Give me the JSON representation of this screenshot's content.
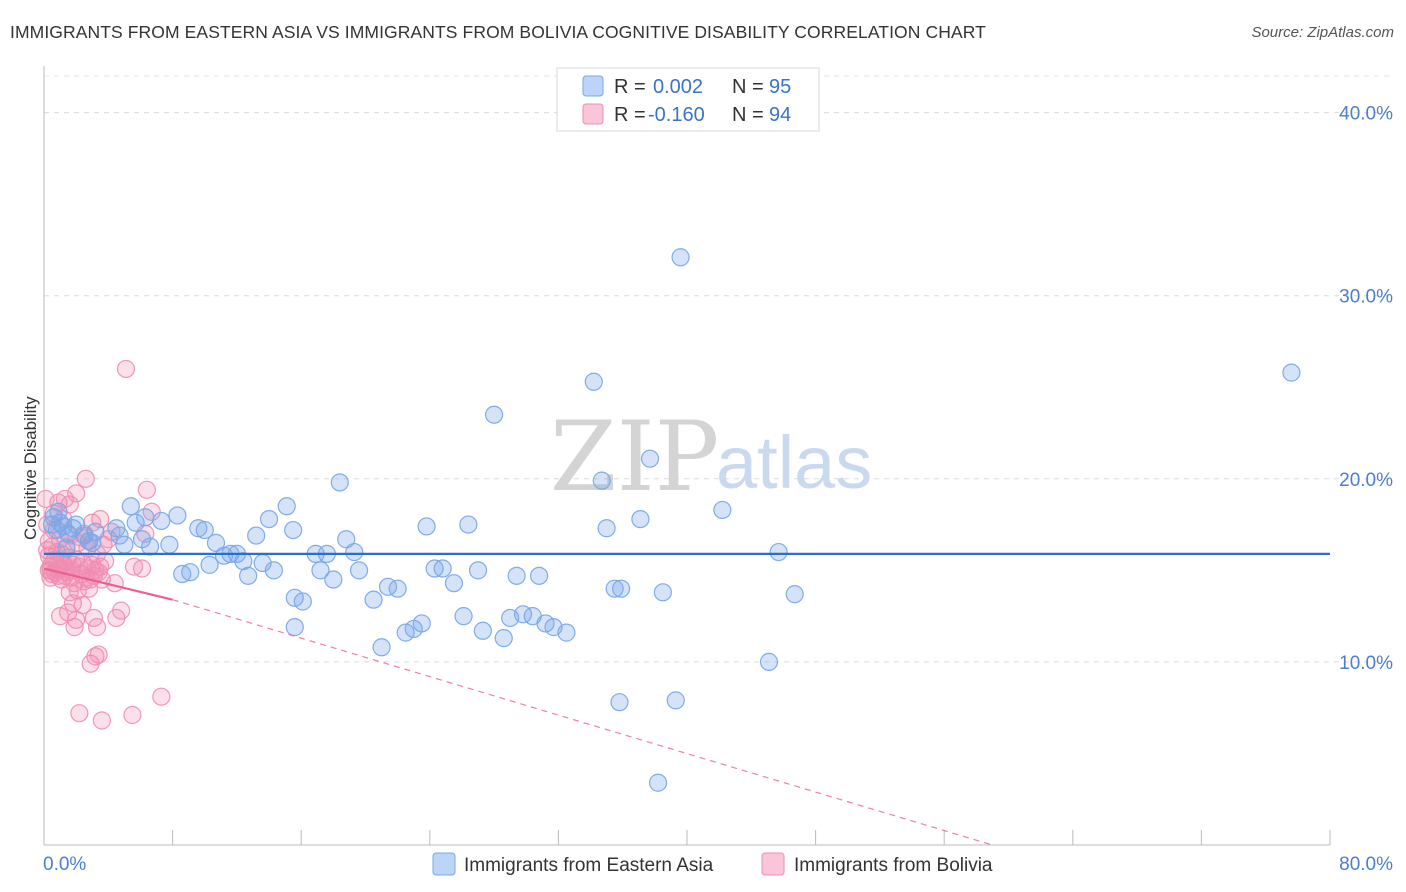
{
  "title": "IMMIGRANTS FROM EASTERN ASIA VS IMMIGRANTS FROM BOLIVIA COGNITIVE DISABILITY CORRELATION CHART",
  "source": "Source: ZipAtlas.com",
  "watermark": {
    "zip": "ZIP",
    "atlas": "atlas"
  },
  "legend": {
    "r_label": "R =",
    "n_label": "N =",
    "rows": [
      {
        "r": "0.002",
        "n": "95"
      },
      {
        "r": "-0.160",
        "n": "94"
      }
    ]
  },
  "chart_data": {
    "type": "scatter",
    "title": "IMMIGRANTS FROM EASTERN ASIA VS IMMIGRANTS FROM BOLIVIA COGNITIVE DISABILITY CORRELATION CHART",
    "xlabel": "",
    "ylabel": "Cognitive Disability",
    "xlim": [
      0,
      80
    ],
    "ylim": [
      0,
      42
    ],
    "x_tick_labels": [
      "0.0%",
      "80.0%"
    ],
    "y_ticks": [
      10,
      20,
      30,
      40
    ],
    "y_tick_labels": [
      "10.0%",
      "20.0%",
      "30.0%",
      "40.0%"
    ],
    "grid": true,
    "legend_position": "top-center",
    "colors": {
      "eastern_asia": "#7aa8e8",
      "bolivia": "#f08db0",
      "eastern_asia_line": "#2b6fc9",
      "bolivia_line": "#e8628f"
    },
    "series": [
      {
        "name": "Immigrants from Eastern Asia",
        "r": 0.002,
        "n": 95,
        "trend": {
          "x": [
            0,
            80
          ],
          "y": [
            15.9,
            15.9
          ]
        },
        "points": [
          [
            0.5,
            17.5
          ],
          [
            0.6,
            17.9
          ],
          [
            0.8,
            17.2
          ],
          [
            1.0,
            17.6
          ],
          [
            1.2,
            17.4
          ],
          [
            1.5,
            17.0
          ],
          [
            1.8,
            17.3
          ],
          [
            2.0,
            17.5
          ],
          [
            2.5,
            16.9
          ],
          [
            3.0,
            16.5
          ],
          [
            3.2,
            17.1
          ],
          [
            4.5,
            17.3
          ],
          [
            4.7,
            16.9
          ],
          [
            5.0,
            16.4
          ],
          [
            5.4,
            18.5
          ],
          [
            5.7,
            17.6
          ],
          [
            6.1,
            16.7
          ],
          [
            6.3,
            17.9
          ],
          [
            6.6,
            16.3
          ],
          [
            7.3,
            17.7
          ],
          [
            7.8,
            16.4
          ],
          [
            8.3,
            18.0
          ],
          [
            8.6,
            14.8
          ],
          [
            9.1,
            14.9
          ],
          [
            9.6,
            17.3
          ],
          [
            10.0,
            17.2
          ],
          [
            10.3,
            15.3
          ],
          [
            10.7,
            16.5
          ],
          [
            11.2,
            15.8
          ],
          [
            11.6,
            15.9
          ],
          [
            12.0,
            15.9
          ],
          [
            12.4,
            15.5
          ],
          [
            12.7,
            14.7
          ],
          [
            13.2,
            16.9
          ],
          [
            13.6,
            15.4
          ],
          [
            14.0,
            17.8
          ],
          [
            14.3,
            15.0
          ],
          [
            15.1,
            18.5
          ],
          [
            15.5,
            17.2
          ],
          [
            15.6,
            11.9
          ],
          [
            15.6,
            13.5
          ],
          [
            16.1,
            13.3
          ],
          [
            16.9,
            15.9
          ],
          [
            17.2,
            15.0
          ],
          [
            17.6,
            15.9
          ],
          [
            18.0,
            14.5
          ],
          [
            18.4,
            19.8
          ],
          [
            18.8,
            16.7
          ],
          [
            19.3,
            16.0
          ],
          [
            19.6,
            15.0
          ],
          [
            20.5,
            13.4
          ],
          [
            21.0,
            10.8
          ],
          [
            21.4,
            14.1
          ],
          [
            22.0,
            14.0
          ],
          [
            22.5,
            11.6
          ],
          [
            23.0,
            11.8
          ],
          [
            23.5,
            12.1
          ],
          [
            23.8,
            17.4
          ],
          [
            24.3,
            15.1
          ],
          [
            24.8,
            15.1
          ],
          [
            25.5,
            14.3
          ],
          [
            26.1,
            12.5
          ],
          [
            26.4,
            17.5
          ],
          [
            27.0,
            15.0
          ],
          [
            27.3,
            11.7
          ],
          [
            28.0,
            23.5
          ],
          [
            28.6,
            11.3
          ],
          [
            29.0,
            12.4
          ],
          [
            29.4,
            14.7
          ],
          [
            29.8,
            12.6
          ],
          [
            30.4,
            12.5
          ],
          [
            30.8,
            14.7
          ],
          [
            31.2,
            12.1
          ],
          [
            31.7,
            11.9
          ],
          [
            32.5,
            11.6
          ],
          [
            34.2,
            25.3
          ],
          [
            34.7,
            19.9
          ],
          [
            35.0,
            17.3
          ],
          [
            35.5,
            14.0
          ],
          [
            35.9,
            14.0
          ],
          [
            35.8,
            7.8
          ],
          [
            37.1,
            17.8
          ],
          [
            37.7,
            21.1
          ],
          [
            38.2,
            3.4
          ],
          [
            38.5,
            13.8
          ],
          [
            39.6,
            32.1
          ],
          [
            39.3,
            7.9
          ],
          [
            42.2,
            18.3
          ],
          [
            45.1,
            10.0
          ],
          [
            45.7,
            16.0
          ],
          [
            46.7,
            13.7
          ],
          [
            77.6,
            25.8
          ],
          [
            0.9,
            18.2
          ],
          [
            2.8,
            16.6
          ],
          [
            1.4,
            16.2
          ]
        ]
      },
      {
        "name": "Immigrants from Bolivia",
        "r": -0.16,
        "n": 94,
        "trend": {
          "x": [
            0,
            8.0
          ],
          "y": [
            15.1,
            13.4
          ]
        },
        "trend_dashed": {
          "x": [
            8.0,
            59.0
          ],
          "y": [
            13.4,
            0.0
          ]
        },
        "points": [
          [
            0.1,
            18.9
          ],
          [
            0.2,
            17.5
          ],
          [
            0.3,
            16.6
          ],
          [
            0.3,
            15.8
          ],
          [
            0.4,
            15.2
          ],
          [
            0.4,
            15.0
          ],
          [
            0.5,
            14.8
          ],
          [
            0.5,
            16.3
          ],
          [
            0.6,
            17.2
          ],
          [
            0.6,
            15.5
          ],
          [
            0.7,
            15.6
          ],
          [
            0.7,
            14.9
          ],
          [
            0.8,
            16.0
          ],
          [
            0.8,
            15.3
          ],
          [
            0.9,
            14.7
          ],
          [
            0.9,
            18.7
          ],
          [
            1.0,
            15.1
          ],
          [
            1.0,
            16.7
          ],
          [
            1.1,
            14.5
          ],
          [
            1.1,
            15.9
          ],
          [
            1.2,
            15.4
          ],
          [
            1.2,
            17.8
          ],
          [
            1.3,
            18.9
          ],
          [
            1.3,
            15.2
          ],
          [
            1.4,
            16.3
          ],
          [
            1.4,
            14.9
          ],
          [
            1.5,
            12.7
          ],
          [
            1.5,
            15.7
          ],
          [
            1.6,
            13.8
          ],
          [
            1.6,
            16.9
          ],
          [
            1.7,
            14.6
          ],
          [
            1.7,
            15.0
          ],
          [
            1.8,
            13.2
          ],
          [
            1.8,
            15.3
          ],
          [
            1.9,
            14.3
          ],
          [
            1.9,
            11.9
          ],
          [
            2.0,
            12.3
          ],
          [
            2.0,
            15.6
          ],
          [
            2.1,
            16.5
          ],
          [
            2.1,
            13.9
          ],
          [
            2.2,
            15.2
          ],
          [
            2.2,
            7.2
          ],
          [
            2.3,
            16.8
          ],
          [
            2.3,
            14.8
          ],
          [
            2.4,
            13.1
          ],
          [
            2.4,
            15.4
          ],
          [
            2.5,
            14.4
          ],
          [
            2.5,
            17.0
          ],
          [
            2.6,
            20.0
          ],
          [
            2.6,
            14.6
          ],
          [
            2.7,
            16.2
          ],
          [
            2.7,
            15.1
          ],
          [
            2.8,
            14.0
          ],
          [
            2.8,
            16.6
          ],
          [
            2.9,
            14.5
          ],
          [
            2.9,
            9.9
          ],
          [
            3.0,
            15.3
          ],
          [
            3.0,
            17.6
          ],
          [
            3.1,
            12.4
          ],
          [
            3.1,
            14.7
          ],
          [
            3.2,
            10.3
          ],
          [
            3.2,
            15.0
          ],
          [
            3.3,
            11.9
          ],
          [
            3.3,
            15.9
          ],
          [
            3.4,
            10.4
          ],
          [
            3.4,
            14.9
          ],
          [
            3.5,
            17.8
          ],
          [
            3.5,
            15.2
          ],
          [
            3.6,
            6.8
          ],
          [
            3.6,
            14.5
          ],
          [
            3.7,
            16.4
          ],
          [
            3.8,
            15.5
          ],
          [
            4.0,
            16.7
          ],
          [
            4.2,
            17.1
          ],
          [
            4.4,
            14.3
          ],
          [
            4.5,
            12.4
          ],
          [
            4.8,
            12.8
          ],
          [
            5.1,
            26.0
          ],
          [
            5.5,
            7.1
          ],
          [
            5.6,
            15.2
          ],
          [
            6.1,
            15.1
          ],
          [
            6.4,
            19.4
          ],
          [
            6.7,
            18.2
          ],
          [
            7.3,
            8.1
          ],
          [
            6.3,
            17.0
          ],
          [
            1.0,
            12.5
          ],
          [
            0.4,
            14.6
          ],
          [
            0.2,
            16.1
          ],
          [
            0.6,
            18.1
          ],
          [
            1.6,
            18.6
          ],
          [
            2.0,
            19.2
          ],
          [
            0.3,
            15.0
          ],
          [
            0.9,
            15.0
          ],
          [
            1.3,
            14.7
          ]
        ]
      }
    ]
  },
  "bottom_legend": [
    "Immigrants from Eastern Asia",
    "Immigrants from Bolivia"
  ]
}
